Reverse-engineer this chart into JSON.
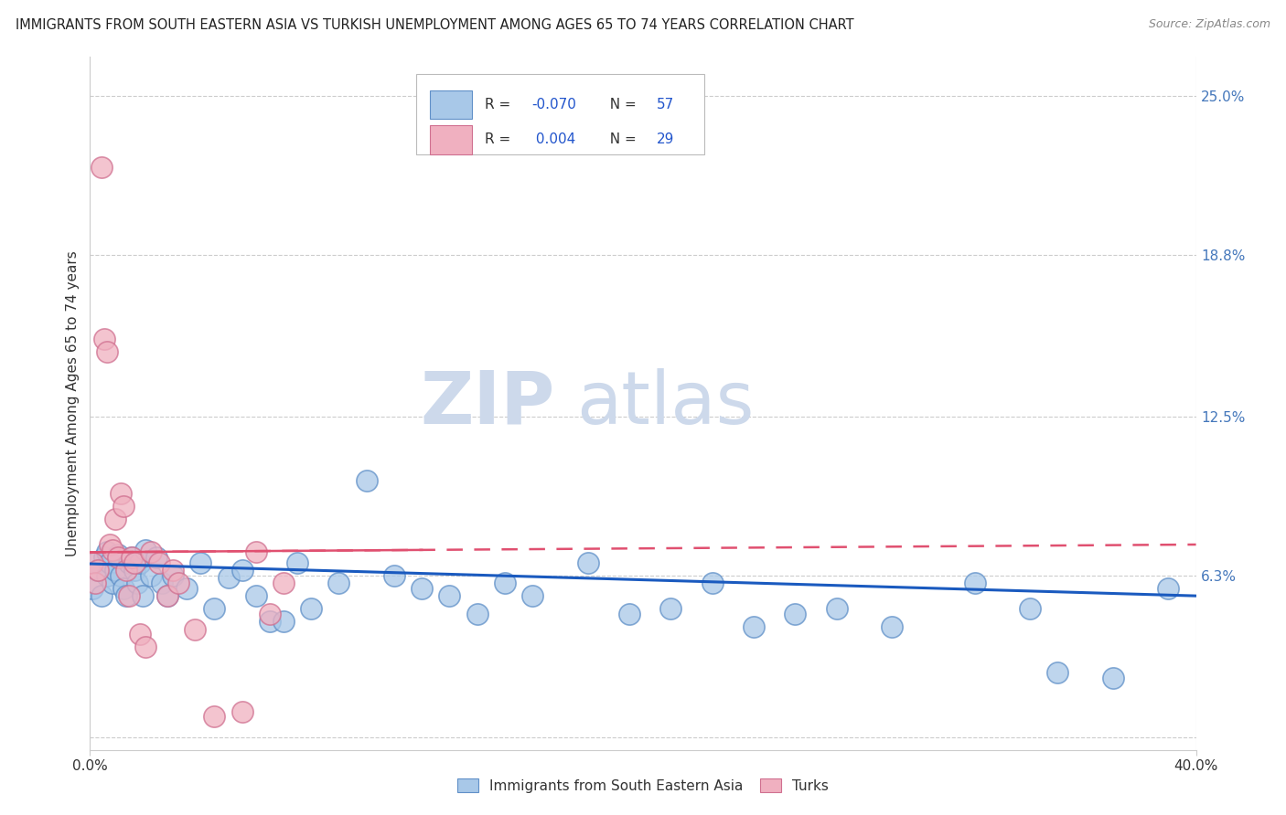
{
  "title": "IMMIGRANTS FROM SOUTH EASTERN ASIA VS TURKISH UNEMPLOYMENT AMONG AGES 65 TO 74 YEARS CORRELATION CHART",
  "source": "Source: ZipAtlas.com",
  "ylabel": "Unemployment Among Ages 65 to 74 years",
  "xlim": [
    0.0,
    0.4
  ],
  "ylim": [
    -0.005,
    0.265
  ],
  "yticks": [
    0.0,
    0.063,
    0.125,
    0.188,
    0.25
  ],
  "ytick_labels": [
    "",
    "6.3%",
    "12.5%",
    "18.8%",
    "25.0%"
  ],
  "xtick_labels": [
    "0.0%",
    "40.0%"
  ],
  "xticks": [
    0.0,
    0.4
  ],
  "legend_labels": [
    "Immigrants from South Eastern Asia",
    "Turks"
  ],
  "R_blue": -0.07,
  "N_blue": 57,
  "R_pink": 0.004,
  "N_pink": 29,
  "blue_color": "#a8c8e8",
  "blue_edge_color": "#6090c8",
  "pink_color": "#f0b0c0",
  "pink_edge_color": "#d07090",
  "blue_line_color": "#1a5abf",
  "pink_line_color": "#e05070",
  "watermark_zip_color": "#c8d8ee",
  "watermark_atlas_color": "#c8d8ee",
  "blue_scatter_x": [
    0.001,
    0.002,
    0.003,
    0.004,
    0.005,
    0.006,
    0.006,
    0.007,
    0.008,
    0.009,
    0.01,
    0.011,
    0.012,
    0.013,
    0.014,
    0.015,
    0.016,
    0.017,
    0.018,
    0.019,
    0.02,
    0.022,
    0.024,
    0.026,
    0.028,
    0.03,
    0.035,
    0.04,
    0.045,
    0.05,
    0.055,
    0.06,
    0.065,
    0.07,
    0.075,
    0.08,
    0.09,
    0.1,
    0.11,
    0.12,
    0.13,
    0.14,
    0.15,
    0.16,
    0.18,
    0.195,
    0.21,
    0.225,
    0.24,
    0.255,
    0.27,
    0.29,
    0.32,
    0.34,
    0.35,
    0.37,
    0.39
  ],
  "blue_scatter_y": [
    0.058,
    0.068,
    0.065,
    0.055,
    0.07,
    0.063,
    0.072,
    0.068,
    0.06,
    0.065,
    0.071,
    0.063,
    0.058,
    0.055,
    0.068,
    0.07,
    0.065,
    0.06,
    0.068,
    0.055,
    0.073,
    0.063,
    0.07,
    0.06,
    0.055,
    0.063,
    0.058,
    0.068,
    0.05,
    0.062,
    0.065,
    0.055,
    0.045,
    0.045,
    0.068,
    0.05,
    0.06,
    0.1,
    0.063,
    0.058,
    0.055,
    0.048,
    0.06,
    0.055,
    0.068,
    0.048,
    0.05,
    0.06,
    0.043,
    0.048,
    0.05,
    0.043,
    0.06,
    0.05,
    0.025,
    0.023,
    0.058
  ],
  "pink_scatter_x": [
    0.001,
    0.002,
    0.003,
    0.004,
    0.005,
    0.006,
    0.007,
    0.008,
    0.009,
    0.01,
    0.011,
    0.012,
    0.013,
    0.014,
    0.015,
    0.016,
    0.018,
    0.02,
    0.022,
    0.025,
    0.028,
    0.03,
    0.032,
    0.038,
    0.045,
    0.055,
    0.06,
    0.065,
    0.07
  ],
  "pink_scatter_y": [
    0.068,
    0.06,
    0.065,
    0.222,
    0.155,
    0.15,
    0.075,
    0.073,
    0.085,
    0.07,
    0.095,
    0.09,
    0.065,
    0.055,
    0.07,
    0.068,
    0.04,
    0.035,
    0.072,
    0.068,
    0.055,
    0.065,
    0.06,
    0.042,
    0.008,
    0.01,
    0.072,
    0.048,
    0.06
  ],
  "blue_line_x0": 0.0,
  "blue_line_x1": 0.4,
  "blue_line_y0": 0.0675,
  "blue_line_y1": 0.055,
  "pink_line_x0": 0.0,
  "pink_line_x1": 0.4,
  "pink_line_y0": 0.072,
  "pink_line_y1": 0.075
}
